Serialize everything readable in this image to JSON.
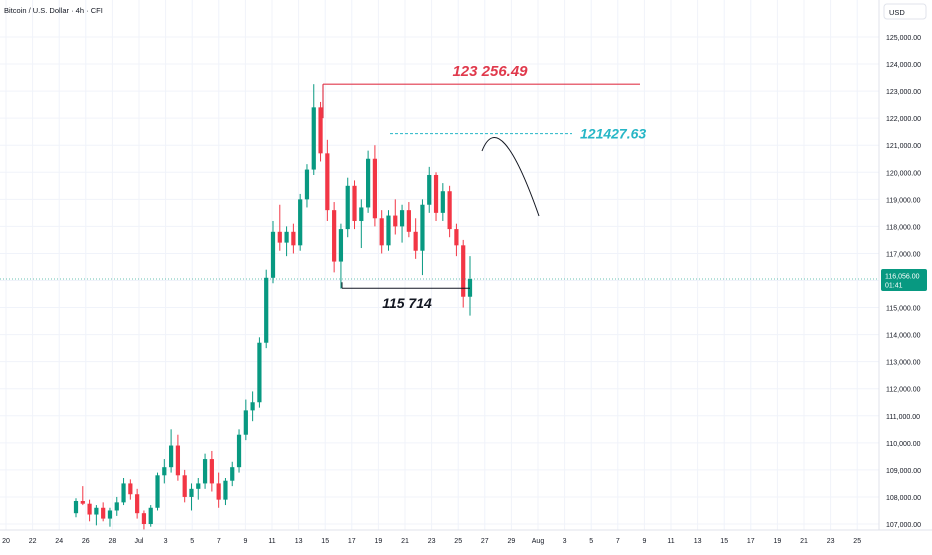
{
  "header": {
    "symbol_title": "Bitcoin / U.S. Dollar · 4h · CFI",
    "currency_button": "USD"
  },
  "price_axis": {
    "ticks": [
      "125,000.00",
      "124,000.00",
      "123,000.00",
      "122,000.00",
      "121,000.00",
      "120,000.00",
      "119,000.00",
      "118,000.00",
      "117,000.00",
      "116,000.00",
      "115,000.00",
      "114,000.00",
      "113,000.00",
      "112,000.00",
      "111,000.00",
      "110,000.00",
      "109,000.00",
      "108,000.00",
      "107,000.00"
    ],
    "current_price_label": "116,056.00",
    "countdown_label": "01:41"
  },
  "time_axis": {
    "ticks": [
      "20",
      "22",
      "24",
      "26",
      "28",
      "Jul",
      "3",
      "5",
      "7",
      "9",
      "11",
      "13",
      "15",
      "17",
      "19",
      "21",
      "23",
      "25",
      "27",
      "29",
      "Aug",
      "3",
      "5",
      "7",
      "9",
      "11",
      "13",
      "15",
      "17",
      "19",
      "21",
      "23",
      "25"
    ]
  },
  "annotations": {
    "high_label": "123 256.49",
    "target_label": "121427.63",
    "support_label": "115 714"
  },
  "colors": {
    "bullish": "#089981",
    "bearish": "#f23645",
    "high_line": "#e0394c",
    "target_line": "#26b6c6",
    "price_badge": "#089981",
    "grid": "#f0f3fa",
    "axis_text": "#131722"
  },
  "chart_data": {
    "type": "candlestick",
    "title": "Bitcoin / U.S. Dollar · 4h · CFI",
    "ylim": [
      106700,
      125500
    ],
    "current_price": 116056,
    "levels": [
      {
        "name": "123 256.49",
        "value": 123256.49
      },
      {
        "name": "121427.63",
        "value": 121427.63
      },
      {
        "name": "115 714",
        "value": 115714
      }
    ],
    "candles": [
      [
        107400,
        107950,
        107250,
        107850
      ],
      [
        107850,
        108400,
        107700,
        107750
      ],
      [
        107750,
        107900,
        107100,
        107350
      ],
      [
        107350,
        107700,
        106950,
        107600
      ],
      [
        107600,
        107800,
        107100,
        107200
      ],
      [
        107200,
        107600,
        106900,
        107500
      ],
      [
        107500,
        108000,
        107300,
        107800
      ],
      [
        107800,
        108700,
        107700,
        108500
      ],
      [
        108500,
        108650,
        107900,
        108100
      ],
      [
        108100,
        108300,
        107200,
        107400
      ],
      [
        107400,
        107500,
        106800,
        107000
      ],
      [
        107000,
        107700,
        106900,
        107600
      ],
      [
        107600,
        108900,
        107500,
        108800
      ],
      [
        108800,
        109400,
        108500,
        109100
      ],
      [
        109100,
        110500,
        108900,
        109900
      ],
      [
        109900,
        110300,
        108600,
        108800
      ],
      [
        108800,
        109000,
        107800,
        108000
      ],
      [
        108000,
        108500,
        107500,
        108300
      ],
      [
        108300,
        108700,
        107900,
        108500
      ],
      [
        108500,
        109600,
        108300,
        109400
      ],
      [
        109400,
        109700,
        108200,
        108500
      ],
      [
        108500,
        108900,
        107600,
        107900
      ],
      [
        107900,
        108700,
        107700,
        108600
      ],
      [
        108600,
        109300,
        108400,
        109100
      ],
      [
        109100,
        110500,
        108900,
        110300
      ],
      [
        110300,
        111600,
        110100,
        111200
      ],
      [
        111200,
        111900,
        110800,
        111500
      ],
      [
        111500,
        113900,
        111300,
        113700
      ],
      [
        113700,
        116400,
        113500,
        116100
      ],
      [
        116100,
        118200,
        115900,
        117800
      ],
      [
        117800,
        118800,
        117100,
        117400
      ],
      [
        117400,
        118000,
        116900,
        117800
      ],
      [
        117800,
        118100,
        117000,
        117300
      ],
      [
        117300,
        119200,
        117100,
        119000
      ],
      [
        119000,
        120300,
        118700,
        120100
      ],
      [
        120100,
        123256,
        119900,
        122400
      ],
      [
        122400,
        122600,
        120400,
        120700
      ],
      [
        120700,
        121200,
        118200,
        118600
      ],
      [
        118600,
        118900,
        116300,
        116700
      ],
      [
        116700,
        118100,
        115700,
        117900
      ],
      [
        117900,
        119800,
        117600,
        119500
      ],
      [
        119500,
        119700,
        117900,
        118200
      ],
      [
        118200,
        119000,
        117200,
        118700
      ],
      [
        118700,
        120800,
        118500,
        120500
      ],
      [
        120500,
        121000,
        118000,
        118300
      ],
      [
        118300,
        118600,
        117000,
        117300
      ],
      [
        117300,
        118600,
        117100,
        118400
      ],
      [
        118400,
        119000,
        117700,
        118000
      ],
      [
        118000,
        118800,
        117400,
        118600
      ],
      [
        118600,
        118900,
        117600,
        117800
      ],
      [
        117800,
        118300,
        116800,
        117100
      ],
      [
        117100,
        119000,
        116200,
        118800
      ],
      [
        118800,
        120200,
        118500,
        119900
      ],
      [
        119900,
        120000,
        118200,
        118500
      ],
      [
        118500,
        119600,
        118200,
        119300
      ],
      [
        119300,
        119500,
        117600,
        117900
      ],
      [
        117900,
        118100,
        116900,
        117300
      ],
      [
        117300,
        117500,
        115000,
        115400
      ],
      [
        115400,
        116900,
        114700,
        116056
      ]
    ]
  }
}
